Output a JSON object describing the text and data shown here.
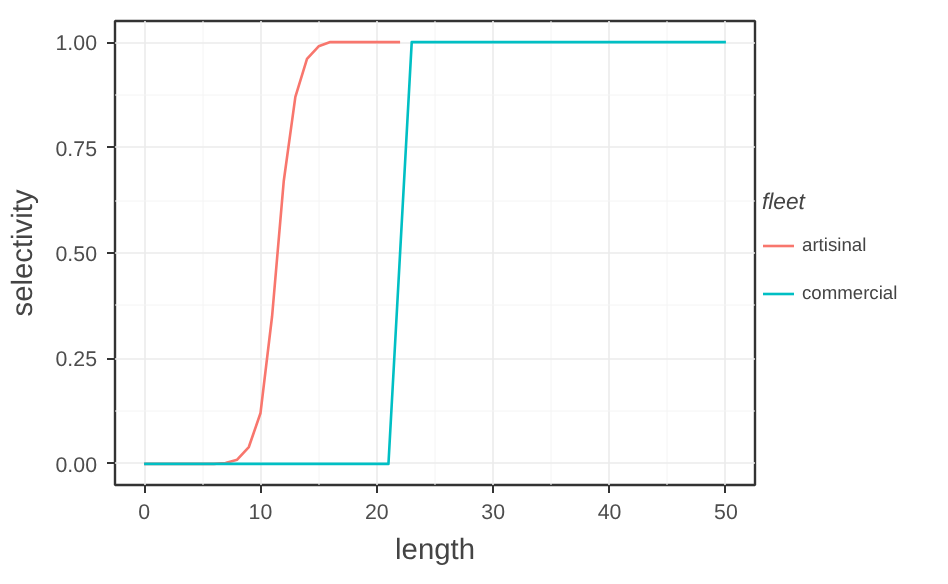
{
  "chart_data": {
    "type": "line",
    "xlabel": "length",
    "ylabel": "selectivity",
    "legend_title": "fleet",
    "legend": "right",
    "grid": true,
    "xlim": [
      -2.5,
      52.5
    ],
    "ylim": [
      -0.05,
      1.05
    ],
    "xticks": [
      0,
      10,
      20,
      30,
      40,
      50
    ],
    "yticks": [
      {
        "value": 0,
        "label": "0.00"
      },
      {
        "value": 0.25,
        "label": "0.25"
      },
      {
        "value": 0.5,
        "label": "0.50"
      },
      {
        "value": 0.75,
        "label": "0.75"
      },
      {
        "value": 1,
        "label": "1.00"
      }
    ],
    "series": [
      {
        "name": "artisinal",
        "color": "#f8766d",
        "x": [
          0,
          6,
          7,
          8,
          9,
          10,
          11,
          12,
          13,
          14,
          15,
          16,
          17,
          22
        ],
        "values": [
          0,
          0,
          0.002,
          0.01,
          0.04,
          0.12,
          0.35,
          0.67,
          0.87,
          0.96,
          0.99,
          1,
          1,
          1
        ]
      },
      {
        "name": "commercial",
        "color": "#00bfc4",
        "x": [
          0,
          21,
          23,
          50
        ],
        "values": [
          0,
          0,
          1,
          1
        ]
      }
    ]
  }
}
